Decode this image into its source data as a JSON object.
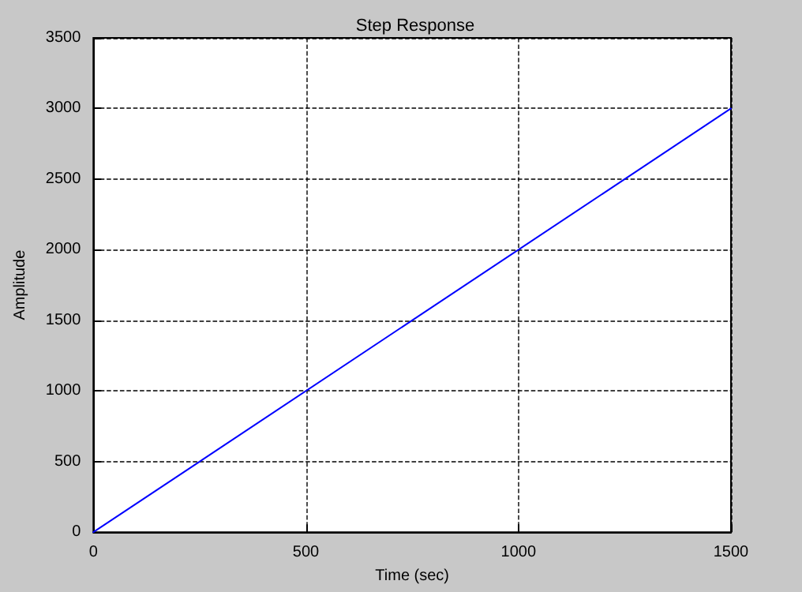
{
  "chart_data": {
    "type": "line",
    "title": "Step Response",
    "xlabel": "Time (sec)",
    "ylabel": "Amplitude",
    "x": [
      0,
      1500
    ],
    "series": [
      {
        "color": "#0000ff",
        "values": [
          0,
          3000
        ]
      }
    ],
    "xlim": [
      0,
      1500
    ],
    "xticks": [
      0,
      500,
      1000,
      1500
    ],
    "ylim": [
      0,
      3500
    ],
    "yticks": [
      0,
      500,
      1000,
      1500,
      2000,
      2500,
      3000,
      3500
    ],
    "grid": true,
    "marker": "none",
    "line_style": "solid"
  }
}
